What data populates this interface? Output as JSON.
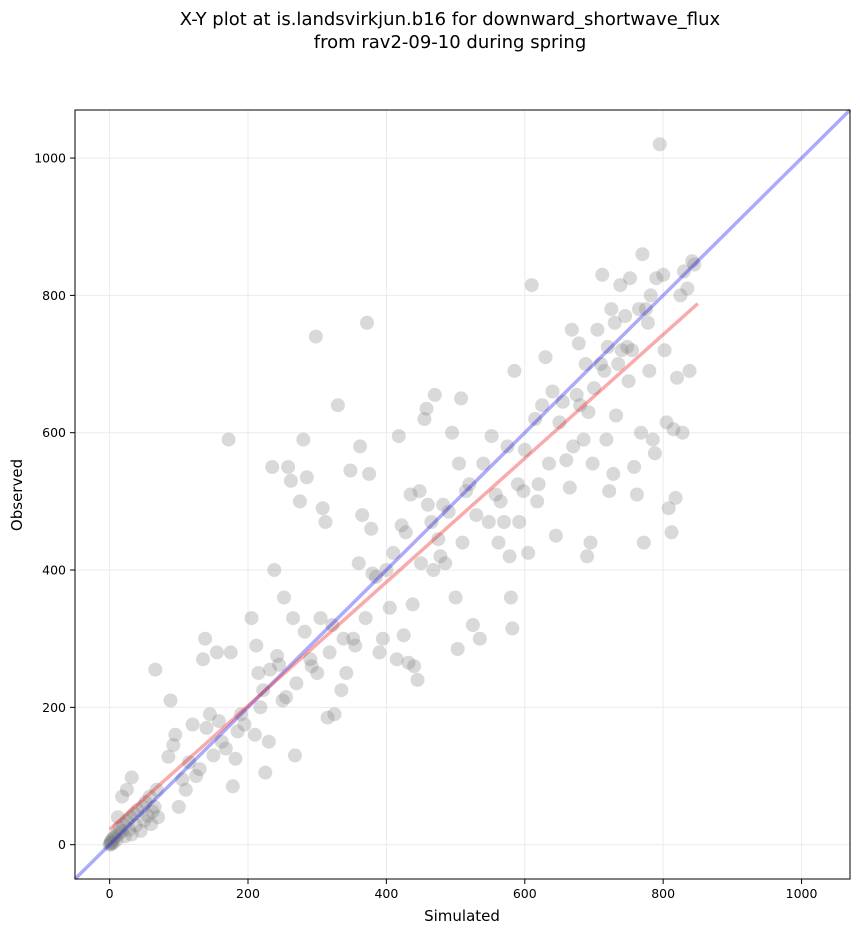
{
  "chart_data": {
    "type": "scatter",
    "title": "X-Y plot at is.landsvirkjun.b16 for downward_shortwave_flux",
    "subtitle": "from rav2-09-10 during spring",
    "xlabel": "Simulated",
    "ylabel": "Observed",
    "xlim": [
      -50,
      1070
    ],
    "ylim": [
      -50,
      1070
    ],
    "xticks": [
      0,
      200,
      400,
      600,
      800,
      1000
    ],
    "yticks": [
      0,
      200,
      400,
      600,
      800,
      1000
    ],
    "grid": true,
    "legend": "none",
    "colors": {
      "points": "#808080",
      "one_to_one": "#0000ee",
      "fit": "#ee2222"
    },
    "one_to_one_line": {
      "x": [
        -50,
        1070
      ],
      "y": [
        -50,
        1070
      ]
    },
    "fit_line": {
      "x": [
        0,
        850
      ],
      "y": [
        22,
        788
      ]
    },
    "points": [
      [
        0,
        0
      ],
      [
        1,
        2
      ],
      [
        2,
        5
      ],
      [
        3,
        1
      ],
      [
        4,
        8
      ],
      [
        5,
        3
      ],
      [
        6,
        10
      ],
      [
        2,
        3
      ],
      [
        8,
        12
      ],
      [
        10,
        7
      ],
      [
        12,
        15
      ],
      [
        15,
        18
      ],
      [
        14,
        25
      ],
      [
        18,
        20
      ],
      [
        20,
        30
      ],
      [
        22,
        12
      ],
      [
        25,
        35
      ],
      [
        28,
        22
      ],
      [
        30,
        40
      ],
      [
        32,
        15
      ],
      [
        35,
        45
      ],
      [
        38,
        28
      ],
      [
        40,
        50
      ],
      [
        45,
        20
      ],
      [
        48,
        55
      ],
      [
        50,
        35
      ],
      [
        52,
        62
      ],
      [
        55,
        42
      ],
      [
        58,
        70
      ],
      [
        60,
        30
      ],
      [
        62,
        48
      ],
      [
        65,
        55
      ],
      [
        68,
        80
      ],
      [
        70,
        40
      ],
      [
        25,
        80
      ],
      [
        32,
        98
      ],
      [
        18,
        70
      ],
      [
        12,
        40
      ],
      [
        66,
        255
      ],
      [
        88,
        210
      ],
      [
        92,
        145
      ],
      [
        85,
        128
      ],
      [
        95,
        160
      ],
      [
        100,
        55
      ],
      [
        105,
        95
      ],
      [
        110,
        80
      ],
      [
        115,
        120
      ],
      [
        120,
        175
      ],
      [
        125,
        100
      ],
      [
        130,
        110
      ],
      [
        138,
        300
      ],
      [
        135,
        270
      ],
      [
        140,
        170
      ],
      [
        145,
        190
      ],
      [
        150,
        130
      ],
      [
        155,
        280
      ],
      [
        158,
        180
      ],
      [
        162,
        150
      ],
      [
        168,
        140
      ],
      [
        172,
        590
      ],
      [
        175,
        280
      ],
      [
        178,
        85
      ],
      [
        182,
        125
      ],
      [
        185,
        165
      ],
      [
        190,
        190
      ],
      [
        195,
        175
      ],
      [
        205,
        330
      ],
      [
        210,
        160
      ],
      [
        212,
        290
      ],
      [
        215,
        250
      ],
      [
        218,
        200
      ],
      [
        222,
        225
      ],
      [
        225,
        105
      ],
      [
        230,
        150
      ],
      [
        232,
        255
      ],
      [
        235,
        550
      ],
      [
        238,
        400
      ],
      [
        242,
        275
      ],
      [
        245,
        262
      ],
      [
        250,
        210
      ],
      [
        252,
        360
      ],
      [
        255,
        215
      ],
      [
        258,
        550
      ],
      [
        262,
        530
      ],
      [
        265,
        330
      ],
      [
        268,
        130
      ],
      [
        270,
        235
      ],
      [
        275,
        500
      ],
      [
        280,
        590
      ],
      [
        282,
        310
      ],
      [
        285,
        535
      ],
      [
        290,
        270
      ],
      [
        292,
        260
      ],
      [
        298,
        740
      ],
      [
        300,
        250
      ],
      [
        305,
        330
      ],
      [
        308,
        490
      ],
      [
        312,
        470
      ],
      [
        315,
        185
      ],
      [
        318,
        280
      ],
      [
        322,
        320
      ],
      [
        325,
        190
      ],
      [
        330,
        640
      ],
      [
        335,
        225
      ],
      [
        338,
        300
      ],
      [
        342,
        250
      ],
      [
        348,
        545
      ],
      [
        352,
        300
      ],
      [
        355,
        290
      ],
      [
        360,
        410
      ],
      [
        362,
        580
      ],
      [
        365,
        480
      ],
      [
        370,
        330
      ],
      [
        372,
        760
      ],
      [
        375,
        540
      ],
      [
        378,
        460
      ],
      [
        380,
        395
      ],
      [
        385,
        390
      ],
      [
        390,
        280
      ],
      [
        395,
        300
      ],
      [
        400,
        400
      ],
      [
        405,
        345
      ],
      [
        410,
        425
      ],
      [
        415,
        270
      ],
      [
        418,
        595
      ],
      [
        422,
        465
      ],
      [
        425,
        305
      ],
      [
        428,
        455
      ],
      [
        432,
        265
      ],
      [
        435,
        510
      ],
      [
        438,
        350
      ],
      [
        440,
        260
      ],
      [
        445,
        240
      ],
      [
        448,
        515
      ],
      [
        450,
        410
      ],
      [
        455,
        620
      ],
      [
        458,
        635
      ],
      [
        460,
        495
      ],
      [
        465,
        470
      ],
      [
        468,
        400
      ],
      [
        470,
        655
      ],
      [
        475,
        445
      ],
      [
        478,
        420
      ],
      [
        482,
        495
      ],
      [
        485,
        410
      ],
      [
        490,
        485
      ],
      [
        495,
        600
      ],
      [
        500,
        360
      ],
      [
        503,
        285
      ],
      [
        505,
        555
      ],
      [
        508,
        650
      ],
      [
        510,
        440
      ],
      [
        515,
        515
      ],
      [
        520,
        525
      ],
      [
        525,
        320
      ],
      [
        530,
        480
      ],
      [
        535,
        300
      ],
      [
        540,
        555
      ],
      [
        548,
        470
      ],
      [
        552,
        595
      ],
      [
        558,
        510
      ],
      [
        562,
        440
      ],
      [
        565,
        500
      ],
      [
        570,
        470
      ],
      [
        575,
        580
      ],
      [
        578,
        420
      ],
      [
        580,
        360
      ],
      [
        582,
        315
      ],
      [
        585,
        690
      ],
      [
        590,
        525
      ],
      [
        592,
        470
      ],
      [
        598,
        515
      ],
      [
        600,
        575
      ],
      [
        605,
        425
      ],
      [
        610,
        815
      ],
      [
        615,
        620
      ],
      [
        618,
        500
      ],
      [
        620,
        525
      ],
      [
        625,
        640
      ],
      [
        630,
        710
      ],
      [
        635,
        555
      ],
      [
        640,
        660
      ],
      [
        645,
        450
      ],
      [
        650,
        615
      ],
      [
        655,
        645
      ],
      [
        660,
        560
      ],
      [
        665,
        520
      ],
      [
        668,
        750
      ],
      [
        670,
        580
      ],
      [
        675,
        655
      ],
      [
        678,
        730
      ],
      [
        680,
        640
      ],
      [
        685,
        590
      ],
      [
        688,
        700
      ],
      [
        690,
        420
      ],
      [
        692,
        630
      ],
      [
        695,
        440
      ],
      [
        698,
        555
      ],
      [
        700,
        665
      ],
      [
        705,
        750
      ],
      [
        710,
        700
      ],
      [
        712,
        830
      ],
      [
        715,
        690
      ],
      [
        718,
        590
      ],
      [
        720,
        725
      ],
      [
        722,
        515
      ],
      [
        725,
        780
      ],
      [
        728,
        540
      ],
      [
        730,
        760
      ],
      [
        732,
        625
      ],
      [
        735,
        700
      ],
      [
        738,
        815
      ],
      [
        740,
        720
      ],
      [
        745,
        770
      ],
      [
        748,
        725
      ],
      [
        750,
        675
      ],
      [
        752,
        825
      ],
      [
        755,
        720
      ],
      [
        758,
        550
      ],
      [
        762,
        510
      ],
      [
        765,
        780
      ],
      [
        768,
        600
      ],
      [
        770,
        860
      ],
      [
        772,
        440
      ],
      [
        775,
        780
      ],
      [
        778,
        760
      ],
      [
        780,
        690
      ],
      [
        782,
        800
      ],
      [
        785,
        590
      ],
      [
        788,
        570
      ],
      [
        790,
        825
      ],
      [
        795,
        1020
      ],
      [
        800,
        830
      ],
      [
        802,
        720
      ],
      [
        805,
        615
      ],
      [
        808,
        490
      ],
      [
        812,
        455
      ],
      [
        815,
        605
      ],
      [
        818,
        505
      ],
      [
        820,
        680
      ],
      [
        825,
        800
      ],
      [
        828,
        600
      ],
      [
        830,
        835
      ],
      [
        835,
        810
      ],
      [
        838,
        690
      ],
      [
        842,
        850
      ],
      [
        845,
        845
      ]
    ]
  }
}
